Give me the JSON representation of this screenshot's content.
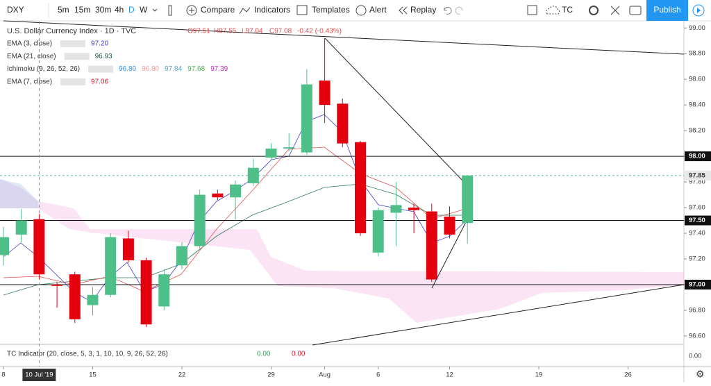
{
  "toolbar": {
    "symbol": "DXY",
    "intervals": [
      "5m",
      "15m",
      "30m",
      "4h",
      "D",
      "W"
    ],
    "compare": "Compare",
    "indicators": "Indicators",
    "templates": "Templates",
    "alert": "Alert",
    "replay": "Replay",
    "layout": "TC",
    "publish": "Publish"
  },
  "legend": {
    "title": "U.S. Dollar Currency Index · 1D · TVC",
    "open": "O97.51",
    "high": "H97.55",
    "low": "L97.04",
    "close": "C97.08",
    "change": "-0.42 (-0.43%)",
    "studies": [
      {
        "name": "EMA (3, close)",
        "values": [
          "97.20"
        ],
        "colors": [
          "#3a3ad8"
        ]
      },
      {
        "name": "EMA (21, close)",
        "values": [
          "96.93"
        ],
        "colors": [
          "#1a5a3a"
        ]
      },
      {
        "name": "Ichimoku (9, 26, 52, 26)",
        "values": [
          "96.80",
          "96.80",
          "97.84",
          "97.68",
          "97.39"
        ],
        "colors": [
          "#2196f3",
          "#f0a0a0",
          "#5ba0d0",
          "#4caf50",
          "#d020d0"
        ]
      },
      {
        "name": "EMA (7, close)",
        "values": [
          "97.06"
        ],
        "colors": [
          "#e01020"
        ]
      }
    ]
  },
  "chart_data": {
    "type": "candlestick",
    "up_color": "#4fbf8a",
    "down_color": "#e5000e",
    "candles": [
      {
        "open": 97.23,
        "high": 97.45,
        "low": 97.15,
        "close": 97.37
      },
      {
        "open": 97.39,
        "high": 97.59,
        "low": 97.33,
        "close": 97.5
      },
      {
        "open": 97.51,
        "high": 97.55,
        "low": 97.04,
        "close": 97.08
      },
      {
        "open": 97.0,
        "high": 97.02,
        "low": 96.82,
        "close": 96.99
      },
      {
        "open": 97.08,
        "high": 97.1,
        "low": 96.7,
        "close": 96.73
      },
      {
        "open": 96.84,
        "high": 96.98,
        "low": 96.76,
        "close": 96.92
      },
      {
        "open": 96.92,
        "high": 97.4,
        "low": 96.9,
        "close": 97.37
      },
      {
        "open": 97.36,
        "high": 97.42,
        "low": 97.17,
        "close": 97.19
      },
      {
        "open": 97.19,
        "high": 97.21,
        "low": 96.67,
        "close": 96.69
      },
      {
        "open": 96.83,
        "high": 97.12,
        "low": 96.8,
        "close": 97.08
      },
      {
        "open": 97.15,
        "high": 97.33,
        "low": 97.12,
        "close": 97.3
      },
      {
        "open": 97.3,
        "high": 97.74,
        "low": 97.28,
        "close": 97.7
      },
      {
        "open": 97.71,
        "high": 97.74,
        "low": 97.66,
        "close": 97.68
      },
      {
        "open": 97.68,
        "high": 97.81,
        "low": 97.5,
        "close": 97.78
      },
      {
        "open": 97.79,
        "high": 97.98,
        "low": 97.77,
        "close": 97.91
      },
      {
        "open": 97.99,
        "high": 98.1,
        "low": 97.97,
        "close": 98.06
      },
      {
        "open": 98.06,
        "high": 98.18,
        "low": 98.04,
        "close": 98.07
      },
      {
        "open": 98.03,
        "high": 98.68,
        "low": 98.01,
        "close": 98.56
      },
      {
        "open": 98.59,
        "high": 98.92,
        "low": 98.26,
        "close": 98.4
      },
      {
        "open": 98.41,
        "high": 98.45,
        "low": 98.07,
        "close": 98.1
      },
      {
        "open": 98.11,
        "high": 98.12,
        "low": 97.38,
        "close": 97.4
      },
      {
        "open": 97.25,
        "high": 97.6,
        "low": 97.22,
        "close": 97.58
      },
      {
        "open": 97.56,
        "high": 97.8,
        "low": 97.3,
        "close": 97.62
      },
      {
        "open": 97.6,
        "high": 97.63,
        "low": 97.4,
        "close": 97.58
      },
      {
        "open": 97.57,
        "high": 97.63,
        "low": 97.02,
        "close": 97.04
      },
      {
        "open": 97.53,
        "high": 97.61,
        "low": 97.36,
        "close": 97.39
      },
      {
        "open": 97.48,
        "high": 97.85,
        "low": 97.32,
        "close": 97.85
      }
    ],
    "ylim": [
      96.54,
      99.05
    ],
    "yticks": [
      {
        "value": 99,
        "label": "99.00"
      },
      {
        "value": 98.8,
        "label": "98.80"
      },
      {
        "value": 98.6,
        "label": "98.60"
      },
      {
        "value": 98.4,
        "label": "98.40"
      },
      {
        "value": 98.2,
        "label": "98.20"
      },
      {
        "value": 98,
        "label": "98.00"
      },
      {
        "value": 97.8,
        "label": "97.80"
      },
      {
        "value": 97.6,
        "label": "97.60"
      },
      {
        "value": 97.4,
        "label": "97.40"
      },
      {
        "value": 97.2,
        "label": "97.20"
      },
      {
        "value": 97,
        "label": "97.00"
      },
      {
        "value": 96.8,
        "label": "96.80"
      },
      {
        "value": 96.6,
        "label": "96.60"
      }
    ],
    "levels": [
      {
        "value": 98,
        "label": "98.00"
      },
      {
        "value": 97.5,
        "label": "97.50"
      },
      {
        "value": 97,
        "label": "97.00"
      }
    ],
    "last_price": {
      "value": 97.85,
      "label": "97.85"
    },
    "xticks": [
      {
        "value": 0,
        "label": "8"
      },
      {
        "value": 5,
        "label": "15"
      },
      {
        "value": 10,
        "label": "22"
      },
      {
        "value": 15,
        "label": "29"
      },
      {
        "value": 18,
        "label": "Aug"
      },
      {
        "value": 21,
        "label": "6"
      },
      {
        "value": 25,
        "label": "12"
      },
      {
        "value": 30,
        "label": "19"
      },
      {
        "value": 35,
        "label": "26"
      }
    ],
    "crosshair": {
      "value": 2,
      "label": "10 Jul '19"
    },
    "lower_pane": {
      "title": "TC Indicator (20, close, 5, 3, 1, 10, 10, 9, 26, 52, 26)",
      "values": [
        "0.00",
        "0.00"
      ],
      "ticks": [
        {
          "value": 0,
          "label": "0.00"
        }
      ]
    }
  }
}
